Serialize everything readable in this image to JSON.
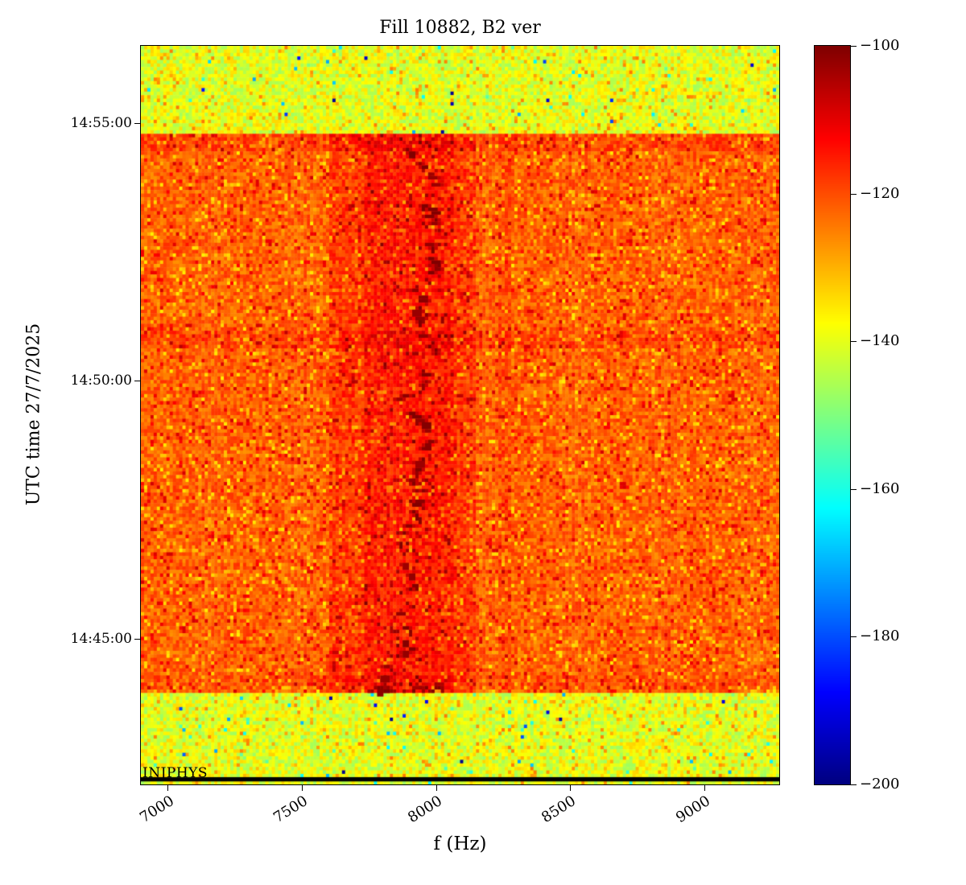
{
  "chart_data": {
    "type": "heatmap",
    "subtype": "spectrogram",
    "title": "Fill 10882, B2 ver",
    "xlabel": "f (Hz)",
    "ylabel": "UTC time 27/7/2025",
    "annotation": "INJPHYS",
    "x_range_hz": [
      6900,
      9280
    ],
    "x_ticks": [
      7000,
      7500,
      8000,
      8500,
      9000
    ],
    "y_ticks": [
      "14:55:00",
      "14:50:00",
      "14:45:00"
    ],
    "y_range_utc": [
      "14:42:10",
      "14:56:30"
    ],
    "colorbar": {
      "colormap": "jet",
      "min": -200,
      "max": -100,
      "ticks": [
        -100,
        -120,
        -140,
        -160,
        -180,
        -200
      ]
    },
    "features": [
      "Yellow-green low-power noise band before ~14:43:56 (injection / INJPHYS period)",
      "Yellow-green low-power noise band after ~14:54:47",
      "Orange-red high-power plateau between ~14:43:56 and ~14:54:47 (~-115 to -127 dB)",
      "Darker red vertical band around 7600-8150 Hz during the plateau",
      "Dark-red (~-101 dB) wandering spectral line near 7700-8060 Hz",
      "Faint hotter vertical line near 8250 Hz",
      "Redder horizontal stripes near 14:50:45 and 14:54:35",
      "Dense dark-red burst near 14:44:00 around 7740-8030 Hz",
      "Black horizontal marker line near 14:42:16"
    ],
    "render": {
      "seed": 10882,
      "cols": 200,
      "rows": 210,
      "bands": [
        {
          "name": "post-plateau-noise",
          "t0": "14:54:47",
          "t1": "14:56:30",
          "base": -140,
          "noise": 7,
          "speckles": [
            {
              "p": 0.05,
              "vmin": -131,
              "vmax": -124
            },
            {
              "p": 0.012,
              "vmin": -172,
              "vmax": -148
            },
            {
              "p": 0.003,
              "vmin": -199,
              "vmax": -178
            }
          ]
        },
        {
          "name": "plateau",
          "t0": "14:43:56",
          "t1": "14:54:47",
          "base": -122,
          "noise": 5,
          "speckles": [
            {
              "p": 0.09,
              "vmin": -136,
              "vmax": -128
            },
            {
              "p": 0.06,
              "vmin": -114,
              "vmax": -108
            }
          ]
        },
        {
          "name": "pre-plateau-noise",
          "t0": "14:42:10",
          "t1": "14:43:56",
          "base": -140,
          "noise": 7,
          "speckles": [
            {
              "p": 0.05,
              "vmin": -131,
              "vmax": -124
            },
            {
              "p": 0.012,
              "vmin": -172,
              "vmax": -148
            },
            {
              "p": 0.003,
              "vmin": -199,
              "vmax": -178
            }
          ]
        }
      ],
      "vertical_bands": [
        {
          "f0": 7600,
          "f1": 8150,
          "t0": "14:43:56",
          "t1": "14:54:47",
          "delta": 4
        },
        {
          "f0": 7730,
          "f1": 8070,
          "t0": "14:43:56",
          "t1": "14:54:47",
          "delta": 3
        },
        {
          "f0": 8230,
          "f1": 8275,
          "t0": "14:43:56",
          "t1": "14:54:47",
          "delta": 2
        }
      ],
      "stripes": [
        {
          "t0": "14:54:28",
          "t1": "14:54:47",
          "delta": 3
        },
        {
          "t0": "14:50:38",
          "t1": "14:50:58",
          "delta": 3
        },
        {
          "t0": "14:44:00",
          "t1": "14:44:18",
          "delta": 2
        }
      ],
      "trace": {
        "t0": "14:43:56",
        "t1": "14:54:35",
        "f_center": 7880,
        "f_min": 7700,
        "f_max": 8060,
        "step_hz": 30,
        "p_blob": 0.5,
        "v_blob": -101,
        "v_halo": -107
      },
      "burst": {
        "t0": "14:43:56",
        "t1": "14:44:10",
        "f0": 7740,
        "f1": 8030,
        "p": 0.4,
        "v": -102
      },
      "baseline_line": {
        "t": "14:42:16",
        "thickness_s": 5,
        "color": "#000000"
      }
    }
  }
}
